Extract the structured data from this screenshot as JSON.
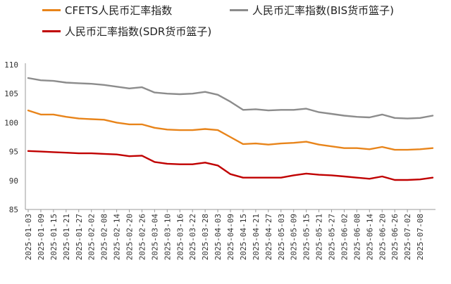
{
  "chart_data": {
    "type": "line",
    "title": "",
    "xlabel": "",
    "ylabel": "",
    "ylim": [
      85,
      110
    ],
    "yticks": [
      85,
      90,
      95,
      100,
      105,
      110
    ],
    "grid": false,
    "legend_position": "top",
    "x": [
      "2025-01-03",
      "2025-01-09",
      "2025-01-15",
      "2025-01-21",
      "2025-01-27",
      "2025-02-02",
      "2025-02-08",
      "2025-02-14",
      "2025-02-20",
      "2025-02-26",
      "2025-03-04",
      "2025-03-10",
      "2025-03-16",
      "2025-03-22",
      "2025-03-28",
      "2025-04-03",
      "2025-04-09",
      "2025-04-15",
      "2025-04-21",
      "2025-04-27",
      "2025-05-03",
      "2025-05-09",
      "2025-05-15",
      "2025-05-21",
      "2025-05-27",
      "2025-06-02",
      "2025-06-08",
      "2025-06-14",
      "2025-06-20",
      "2025-06-26",
      "2025-07-02",
      "2025-07-08",
      "2025-07-11"
    ],
    "xtick_labels": [
      "2025-01-03",
      "2025-01-09",
      "2025-01-15",
      "2025-01-21",
      "2025-01-27",
      "2025-02-02",
      "2025-02-08",
      "2025-02-14",
      "2025-02-20",
      "2025-02-26",
      "2025-03-04",
      "2025-03-10",
      "2025-03-16",
      "2025-03-22",
      "2025-03-28",
      "2025-04-03",
      "2025-04-09",
      "2025-04-15",
      "2025-04-21",
      "2025-04-27",
      "2025-05-03",
      "2025-05-09",
      "2025-05-15",
      "2025-05-21",
      "2025-05-27",
      "2025-06-02",
      "2025-06-08",
      "2025-06-14",
      "2025-06-20",
      "2025-06-26",
      "2025-07-02",
      "2025-07-08"
    ],
    "series": [
      {
        "name": "CFETS人民币汇率指数",
        "color": "#E8841A",
        "values": [
          102.1,
          101.4,
          101.4,
          101.0,
          100.7,
          100.6,
          100.5,
          100.0,
          99.7,
          99.7,
          99.1,
          98.8,
          98.7,
          98.7,
          98.9,
          98.7,
          97.5,
          96.3,
          96.4,
          96.2,
          96.4,
          96.5,
          96.7,
          96.2,
          95.9,
          95.6,
          95.6,
          95.4,
          95.8,
          95.3,
          95.3,
          95.4,
          95.6
        ]
      },
      {
        "name": "人民币汇率指数(BIS货币篮子)",
        "color": "#8C8C8C",
        "values": [
          107.7,
          107.3,
          107.2,
          106.9,
          106.8,
          106.7,
          106.5,
          106.2,
          105.9,
          106.1,
          105.2,
          105.0,
          104.9,
          105.0,
          105.3,
          104.8,
          103.6,
          102.2,
          102.3,
          102.1,
          102.2,
          102.2,
          102.4,
          101.8,
          101.5,
          101.2,
          101.0,
          100.9,
          101.4,
          100.8,
          100.7,
          100.8,
          101.2
        ]
      },
      {
        "name": "人民币汇率指数(SDR货币篮子)",
        "color": "#C00000",
        "values": [
          95.1,
          95.0,
          94.9,
          94.8,
          94.7,
          94.7,
          94.6,
          94.5,
          94.2,
          94.3,
          93.2,
          92.9,
          92.8,
          92.8,
          93.1,
          92.6,
          91.1,
          90.5,
          90.5,
          90.5,
          90.5,
          90.9,
          91.2,
          91.0,
          90.9,
          90.7,
          90.5,
          90.3,
          90.7,
          90.1,
          90.1,
          90.2,
          90.5
        ]
      }
    ]
  }
}
